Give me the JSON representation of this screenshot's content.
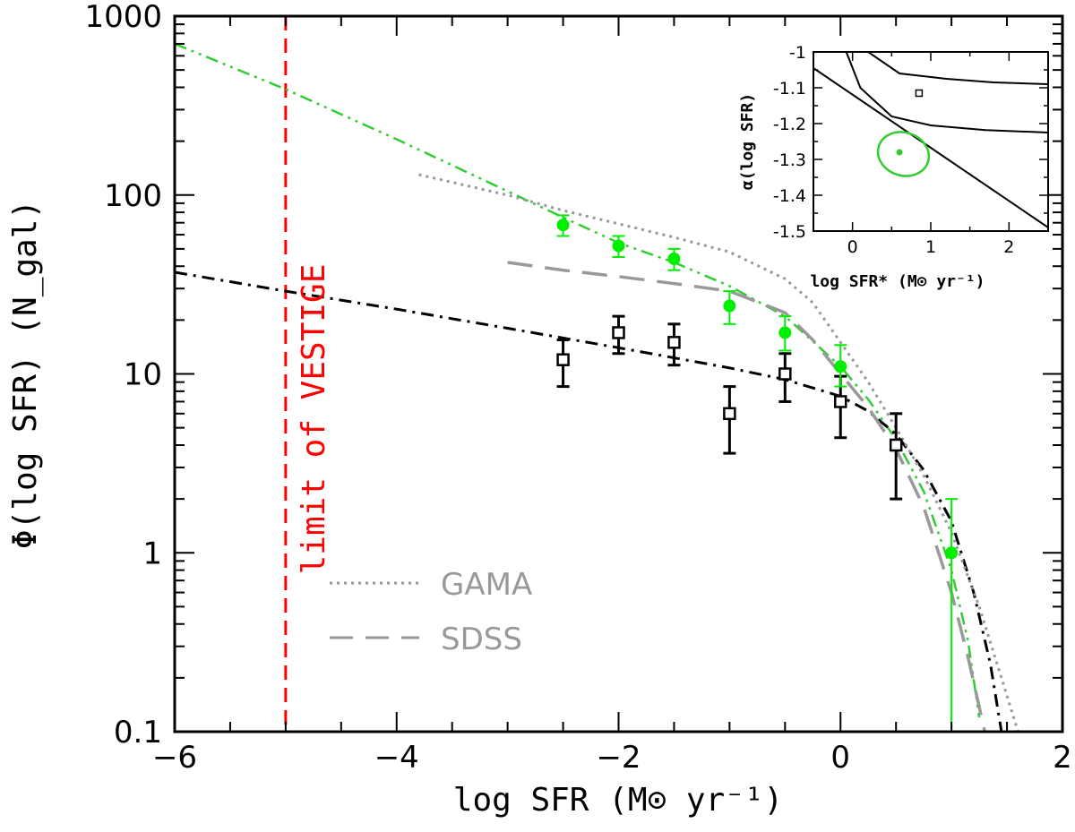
{
  "chart_data": {
    "type": "scatter",
    "xlabel": "log SFR (M⊙ yr⁻¹)",
    "ylabel": "Φ(log SFR) (N_gal)",
    "xlim": [
      -6,
      2
    ],
    "ylim": [
      0.1,
      1000
    ],
    "yscale": "log",
    "x_ticks": [
      "−6",
      "−4",
      "−2",
      "0",
      "2"
    ],
    "y_ticks": [
      "0.1",
      "1",
      "10",
      "100",
      "1000"
    ],
    "vline": {
      "x": -5,
      "label": "limit of VESTIGE",
      "color": "#ff0000"
    },
    "series": [
      {
        "style": "black-open-squares",
        "color": "#000000",
        "x": [
          -2.5,
          -2.0,
          -1.5,
          -1.0,
          -0.5,
          0.0,
          0.5
        ],
        "y": [
          12,
          17,
          15,
          6,
          10,
          7,
          4
        ],
        "err_lo": [
          8.5,
          13,
          11.2,
          3.6,
          7,
          4.4,
          2
        ],
        "err_hi": [
          15.5,
          21,
          19,
          8.5,
          13,
          9.7,
          6
        ]
      },
      {
        "style": "green-filled-circles",
        "color": "#00ee00",
        "x": [
          -2.5,
          -2.0,
          -1.5,
          -1.0,
          -0.5,
          0.0,
          1.0
        ],
        "y": [
          68,
          52,
          44,
          24,
          17,
          11,
          1
        ],
        "err_lo": [
          59,
          45,
          38,
          19,
          13.5,
          8.5,
          0.1
        ],
        "err_hi": [
          77,
          59,
          50,
          29,
          21,
          14.5,
          2
        ]
      },
      {
        "style": "green-dash-dot-fit",
        "color": "#33cc33",
        "x": [
          -6,
          -5,
          -4,
          -3,
          -2.5,
          -2,
          -1.5,
          -1,
          -0.5,
          0,
          0.25,
          0.5,
          0.75,
          1.0,
          1.15,
          1.25
        ],
        "y": [
          700,
          390,
          205,
          105,
          75,
          54,
          42,
          31,
          21,
          11,
          7.2,
          4.3,
          2.2,
          0.8,
          0.32,
          0.12
        ]
      },
      {
        "style": "black-dash-dot-fit",
        "color": "#000000",
        "x": [
          -6,
          -5,
          -4,
          -3,
          -2,
          -1,
          -0.5,
          0,
          0.25,
          0.5,
          0.75,
          1.0,
          1.2,
          1.35,
          1.45
        ],
        "y": [
          37,
          29,
          23,
          18,
          14,
          10.8,
          9.3,
          7.5,
          6.2,
          4.6,
          2.9,
          1.5,
          0.6,
          0.24,
          0.1
        ]
      },
      {
        "name": "GAMA",
        "style": "gray-dotted",
        "color": "#999999",
        "x": [
          -3.8,
          -3.0,
          -2.5,
          -2.0,
          -1.5,
          -1.0,
          -0.5,
          -0.25,
          0.0,
          0.25,
          0.5,
          0.75,
          1.0,
          1.25,
          1.45,
          1.6
        ],
        "y": [
          130,
          100,
          82,
          69,
          58,
          48,
          34,
          25,
          15,
          9,
          5,
          2.7,
          1.3,
          0.5,
          0.2,
          0.1
        ]
      },
      {
        "name": "SDSS",
        "style": "gray-long-dash",
        "color": "#999999",
        "x": [
          -3.0,
          -2.5,
          -2.0,
          -1.5,
          -1.0,
          -0.5,
          -0.25,
          0.0,
          0.25,
          0.5,
          0.75,
          1.0,
          1.15,
          1.3
        ],
        "y": [
          42,
          38,
          35,
          32,
          29,
          22,
          15.5,
          10,
          6.5,
          3.8,
          1.8,
          0.6,
          0.26,
          0.1
        ]
      }
    ],
    "legend": [
      {
        "label": "GAMA",
        "style": "dotted",
        "color": "#999999"
      },
      {
        "label": "SDSS",
        "style": "long-dash",
        "color": "#999999"
      }
    ],
    "legend_placement": "lower-left",
    "inset": {
      "xlabel": "log SFR* (M⊙ yr⁻¹)",
      "ylabel": "α(log SFR)",
      "xlim": [
        -0.5,
        2.5
      ],
      "ylim": [
        -1.5,
        -1.0
      ],
      "x_ticks": [
        "0",
        "1",
        "2"
      ],
      "y_ticks": [
        "-1",
        "-1.1",
        "-1.2",
        "-1.3",
        "-1.4",
        "-1.5"
      ],
      "black_point": {
        "x": 0.85,
        "y": -1.115
      },
      "green_point": {
        "x": 0.6,
        "y": -1.28
      },
      "diagonal_line": [
        {
          "x": -0.5,
          "y": -1.045
        },
        {
          "x": 2.5,
          "y": -1.49
        }
      ],
      "black_contour_upper": [
        {
          "x": 0.2,
          "y": -1.0
        },
        {
          "x": 0.6,
          "y": -1.06
        },
        {
          "x": 1.2,
          "y": -1.075
        },
        {
          "x": 1.8,
          "y": -1.085
        },
        {
          "x": 2.5,
          "y": -1.09
        }
      ],
      "black_contour_lower": [
        {
          "x": -0.08,
          "y": -1.0
        },
        {
          "x": 0.1,
          "y": -1.1
        },
        {
          "x": 0.5,
          "y": -1.18
        },
        {
          "x": 1.0,
          "y": -1.205
        },
        {
          "x": 1.7,
          "y": -1.218
        },
        {
          "x": 2.5,
          "y": -1.225
        }
      ],
      "green_ellipse": {
        "cx": 0.65,
        "cy": -1.285,
        "rx": 0.55,
        "ry": 0.06,
        "angle_deg": 18
      }
    }
  }
}
